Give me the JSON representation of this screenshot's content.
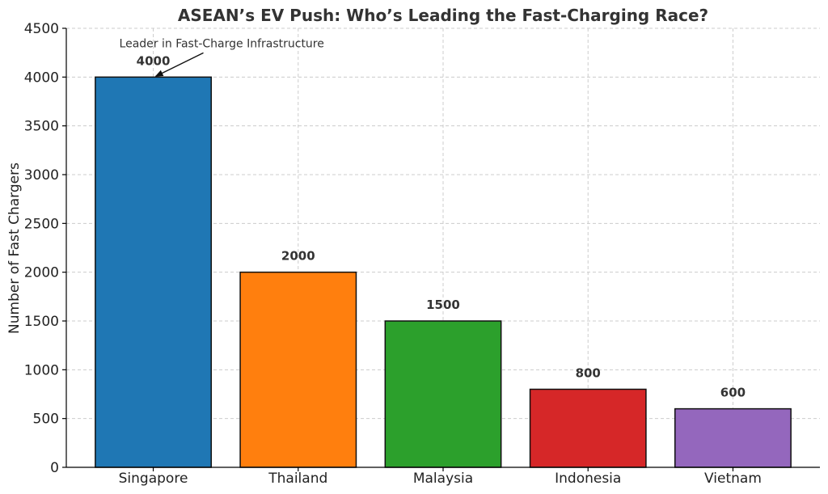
{
  "chart_data": {
    "type": "bar",
    "title": "ASEAN’s EV Push: Who’s Leading the Fast-Charging Race?",
    "xlabel": "",
    "ylabel": "Number of Fast Chargers",
    "categories": [
      "Singapore",
      "Thailand",
      "Malaysia",
      "Indonesia",
      "Vietnam"
    ],
    "values": [
      4000,
      2000,
      1500,
      800,
      600
    ],
    "data_labels": [
      "4000",
      "2000",
      "1500",
      "800",
      "600"
    ],
    "colors": [
      "#1f77b4",
      "#ff7f0e",
      "#2ca02c",
      "#d62728",
      "#9467bd"
    ],
    "ylim": [
      0,
      4500
    ],
    "yticks": [
      0,
      500,
      1000,
      1500,
      2000,
      2500,
      3000,
      3500,
      4000,
      4500
    ],
    "grid": true,
    "annotation": {
      "text": "Leader in Fast-Charge Infrastructure",
      "category": "Singapore",
      "value": 4000
    }
  }
}
